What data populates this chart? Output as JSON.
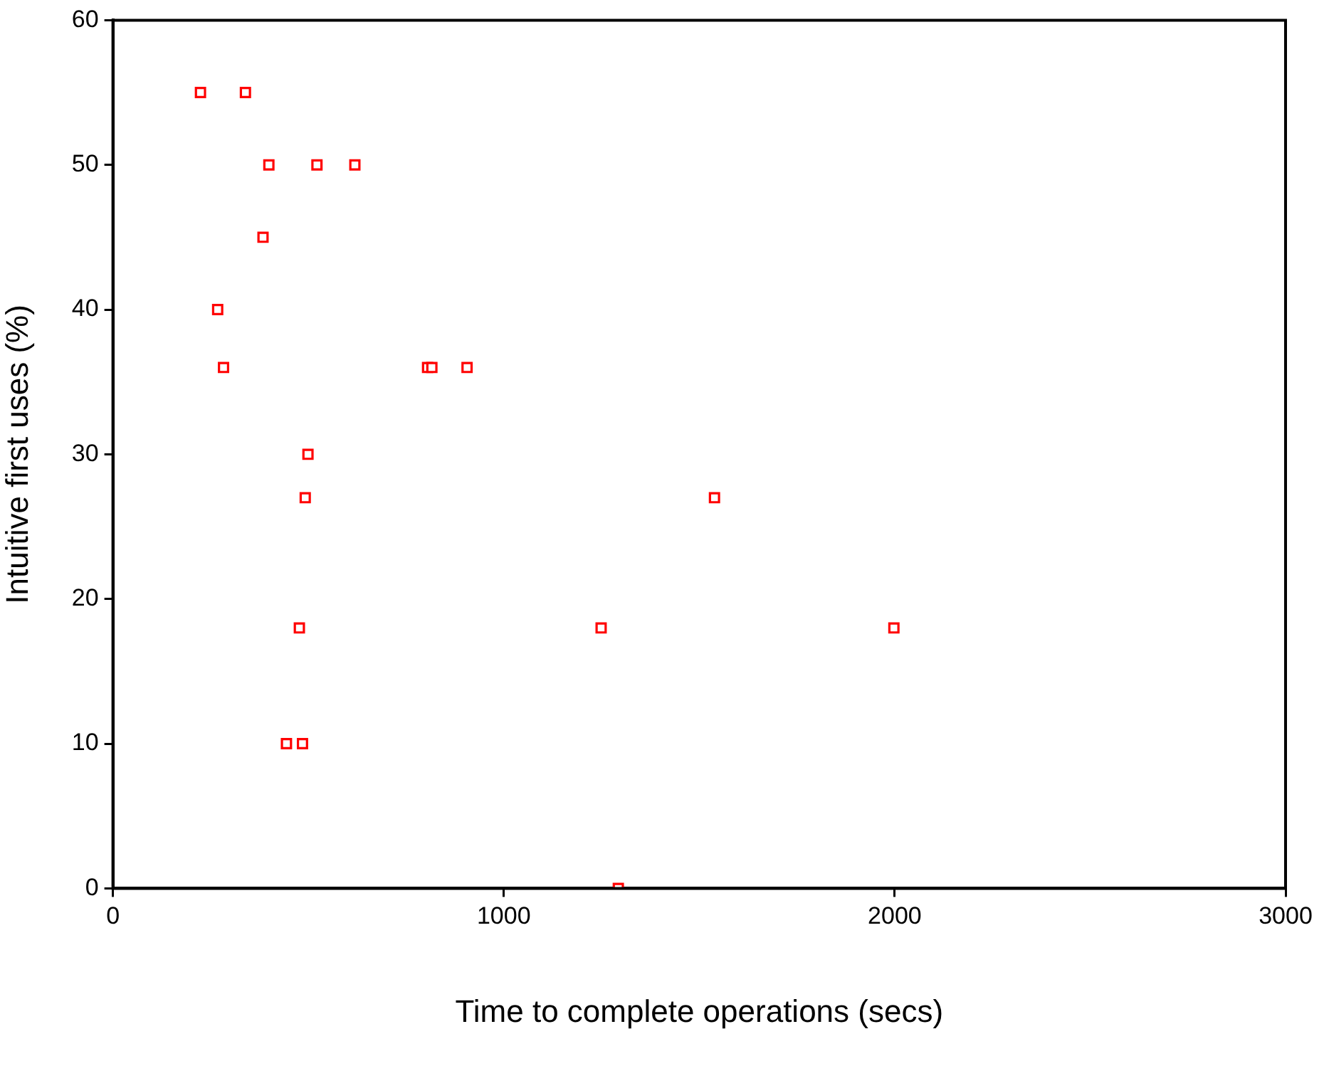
{
  "chart_data": {
    "type": "scatter",
    "xlabel": "Time to complete operations (secs)",
    "ylabel": "Intuitive first uses (%)",
    "x": [
      224,
      339,
      399,
      522,
      619,
      384,
      268,
      283,
      805,
      816,
      906,
      499,
      492,
      1539,
      477,
      1249,
      1998,
      444,
      485,
      1293
    ],
    "series": [
      {
        "color": "#ff0000",
        "values": [
          55,
          55,
          50,
          50,
          50,
          45,
          40,
          36,
          36,
          36,
          36,
          30,
          27,
          27,
          18,
          18,
          18,
          10,
          10,
          0
        ]
      }
    ],
    "xlim": [
      0,
      3000
    ],
    "xticks": [
      0,
      1000,
      2000,
      3000
    ],
    "ylim": [
      0,
      60
    ],
    "yticks": [
      0,
      10,
      20,
      30,
      40,
      50,
      60
    ],
    "marker": "square",
    "grid": false,
    "legend": false
  }
}
